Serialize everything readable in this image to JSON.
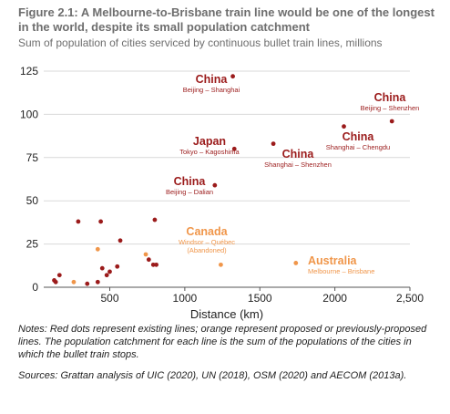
{
  "figure": {
    "title": "Figure 2.1: A Melbourne-to-Brisbane train line would be one of the longest in the world, despite its small population catchment",
    "subtitle": "Sum of population of cities serviced by continuous bullet train lines, millions",
    "notes": "Notes: Red dots represent existing lines; orange represent proposed or previously-proposed lines. The population catchment for each line is the sum of the populations of the cities in which the bullet train stops.",
    "sources": "Sources: Grattan analysis of UIC (2020), UN (2018), OSM (2020) and AECOM (2013a)."
  },
  "chart_data": {
    "type": "scatter",
    "xlabel": "Distance (km)",
    "ylabel": "",
    "xlim": [
      60,
      2500
    ],
    "ylim": [
      0,
      125
    ],
    "x_ticks": [
      500,
      1000,
      1500,
      2000,
      2500
    ],
    "x_tick_labels": [
      "500",
      "1000",
      "1500",
      "2000",
      "2,500"
    ],
    "y_ticks": [
      0,
      25,
      50,
      75,
      100,
      125
    ],
    "y_tick_labels": [
      "0",
      "25",
      "50",
      "75",
      "100",
      "125"
    ],
    "grid": true,
    "colors": {
      "existing": "#9b1b1b",
      "proposed": "#f0964a",
      "axis": "#555555",
      "grid": "#d9d9d9",
      "label_main": "#9b1b1b",
      "label_proposed": "#f0964a"
    },
    "series": [
      {
        "key": "existing",
        "points": [
          [
            1320,
            122
          ],
          [
            2380,
            96
          ],
          [
            2060,
            93
          ],
          [
            1590,
            83
          ],
          [
            1330,
            80
          ],
          [
            1200,
            59
          ],
          [
            290,
            38
          ],
          [
            440,
            38
          ],
          [
            570,
            27
          ],
          [
            800,
            39
          ],
          [
            130,
            4
          ],
          [
            140,
            3
          ],
          [
            165,
            7
          ],
          [
            350,
            2
          ],
          [
            420,
            3
          ],
          [
            450,
            11
          ],
          [
            480,
            7
          ],
          [
            500,
            9
          ],
          [
            550,
            12
          ],
          [
            760,
            16
          ],
          [
            790,
            13
          ],
          [
            810,
            13
          ]
        ]
      },
      {
        "key": "proposed",
        "points": [
          [
            420,
            22
          ],
          [
            260,
            3
          ],
          [
            740,
            19
          ],
          [
            1240,
            13
          ],
          [
            1740,
            14
          ]
        ]
      }
    ],
    "annotations": [
      {
        "key": "beijing-shanghai",
        "country": "China",
        "route": "Beijing – Shanghai",
        "proposed": false
      },
      {
        "key": "beijing-shenzhen",
        "country": "China",
        "route": "Beijing – Shenzhen",
        "proposed": false
      },
      {
        "key": "shanghai-chengdu",
        "country": "China",
        "route": "Shanghai – Chengdu",
        "proposed": false
      },
      {
        "key": "tokyo-kagoshima",
        "country": "Japan",
        "route": "Tokyo – Kagoshima",
        "proposed": false
      },
      {
        "key": "shanghai-shenzhen",
        "country": "China",
        "route": "Shanghai – Shenzhen",
        "proposed": false
      },
      {
        "key": "beijing-dalian",
        "country": "China",
        "route": "Beijing – Dalian",
        "proposed": false
      },
      {
        "key": "windsor-quebec",
        "country": "Canada",
        "route": "Windsor – Québec",
        "note": "(Abandoned)",
        "proposed": true
      },
      {
        "key": "melbourne-brisbane",
        "country": "Australia",
        "route": "Melbourne – Brisbane",
        "proposed": true
      }
    ]
  }
}
